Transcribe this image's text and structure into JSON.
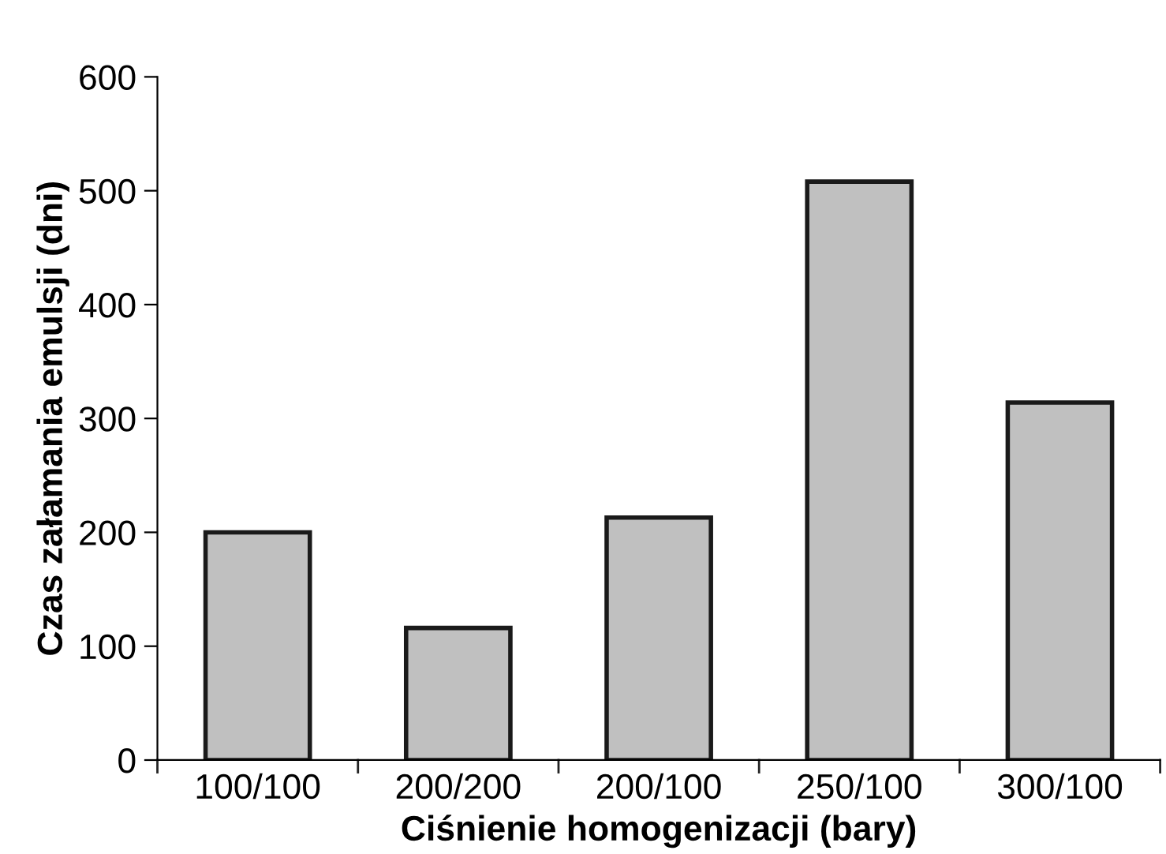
{
  "chart_data": {
    "type": "bar",
    "xlabel": "Ciśnienie homogenizacji (bary)",
    "ylabel": "Czas załamania emulsji (dni)",
    "categories": [
      "100/100",
      "200/200",
      "200/100",
      "250/100",
      "300/100"
    ],
    "values": [
      200,
      116,
      213,
      508,
      314
    ],
    "color": "#c0c0c0",
    "ylim": [
      0,
      600
    ],
    "yticks": [
      0,
      100,
      200,
      300,
      400,
      500,
      600
    ],
    "grid": false,
    "legend": false
  }
}
